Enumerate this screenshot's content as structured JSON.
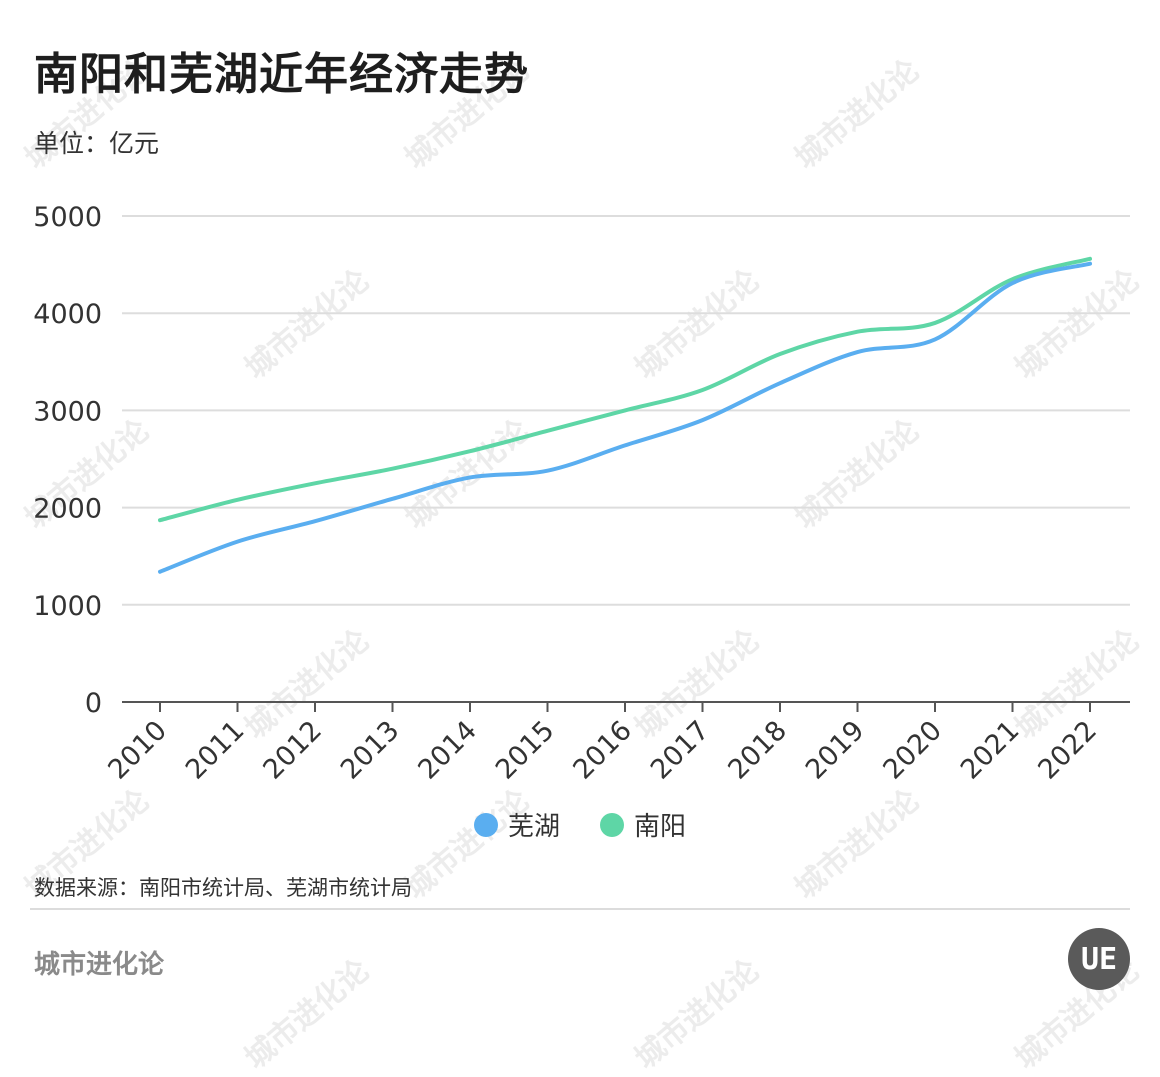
{
  "title": "南阳和芜湖近年经济走势",
  "unit_label": "单位：亿元",
  "source": "数据来源：南阳市统计局、芜湖市统计局",
  "brand": "城市进化论",
  "logo_text": "UE",
  "watermark_text": "城市进化论",
  "colors": {
    "wuhu": "#5aaef0",
    "nanyang": "#5ed6a6",
    "grid": "#dddddd",
    "axis": "#555555"
  },
  "chart_data": {
    "type": "line",
    "title": "南阳和芜湖近年经济走势",
    "ylabel": "单位：亿元",
    "xlabel": "",
    "categories": [
      "2010",
      "2011",
      "2012",
      "2013",
      "2014",
      "2015",
      "2016",
      "2017",
      "2018",
      "2019",
      "2020",
      "2021",
      "2022"
    ],
    "ylim": [
      0,
      5000
    ],
    "yticks": [
      0,
      1000,
      2000,
      3000,
      4000,
      5000
    ],
    "grid": true,
    "legend_position": "bottom-center",
    "series": [
      {
        "name": "芜湖",
        "color": "#5aaef0",
        "values": [
          1340,
          1650,
          1860,
          2090,
          2310,
          2380,
          2640,
          2900,
          3280,
          3600,
          3730,
          4310,
          4510
        ]
      },
      {
        "name": "南阳",
        "color": "#5ed6a6",
        "values": [
          1870,
          2080,
          2250,
          2400,
          2580,
          2790,
          3000,
          3210,
          3580,
          3810,
          3900,
          4350,
          4560
        ]
      }
    ]
  }
}
